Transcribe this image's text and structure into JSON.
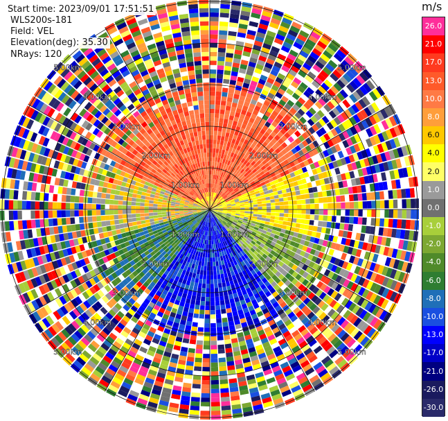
{
  "header": {
    "start_time": "Start time: 2023/09/01 17:51:51",
    "instrument": "WLS200s-181",
    "field": "Field: VEL",
    "elevation": "Elevation(deg): 35.30",
    "nrays": "NRays: 120"
  },
  "range_ring_labels": [
    "1.00km",
    "2.00km",
    "3.00km",
    "4.00km",
    "5.00km"
  ],
  "colorbar": {
    "unit": "m/s",
    "ticks": [
      "26.0",
      "21.0",
      "17.0",
      "13.0",
      "10.0",
      "8.0",
      "6.0",
      "4.0",
      "2.0",
      "1.0",
      "0.0",
      "-1.0",
      "-2.0",
      "-4.0",
      "-6.0",
      "-8.0",
      "-10.0",
      "-13.0",
      "-17.0",
      "-21.0",
      "-26.0",
      "-30.0"
    ],
    "colors": [
      "#ff2e9a",
      "#ff0000",
      "#ff3a1f",
      "#ff5a2a",
      "#ff7a45",
      "#ff9e3a",
      "#ffc800",
      "#ffff00",
      "#ffff66",
      "#9a9a9a",
      "#707070",
      "#a8cf3a",
      "#7da832",
      "#4f8a2a",
      "#2e7d32",
      "#1f6fb8",
      "#1a4fe0",
      "#0000ff",
      "#0000c8",
      "#000080",
      "#1a1a5e",
      "#2a2a6a"
    ]
  }
}
